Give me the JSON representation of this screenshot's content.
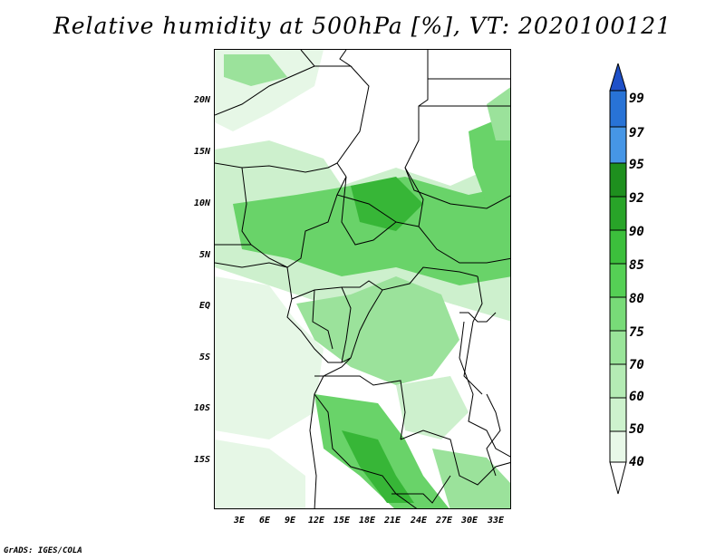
{
  "title": "Relative humidity at 500hPa [%], VT: 2020100121",
  "footer": "GrADS: IGES/COLA",
  "lat_labels": [
    "20N",
    "15N",
    "10N",
    "5N",
    "EQ",
    "5S",
    "10S",
    "15S"
  ],
  "lon_labels": [
    "3E",
    "6E",
    "9E",
    "12E",
    "15E",
    "18E",
    "21E",
    "24E",
    "27E",
    "30E",
    "33E"
  ],
  "colorbar": {
    "levels": [
      "40",
      "50",
      "60",
      "70",
      "75",
      "80",
      "85",
      "90",
      "92",
      "95",
      "97",
      "99"
    ],
    "colors": [
      "#ffffff",
      "#e6f7e6",
      "#cdf0cd",
      "#b4e9b4",
      "#9be29b",
      "#82db82",
      "#69d369",
      "#50c850",
      "#37b637",
      "#1ea01e",
      "#0f8a0f",
      "#4696e6",
      "#2873d6",
      "#1e50c8"
    ]
  },
  "map": {
    "fill_colors": {
      "light": "#e6f7e6",
      "pale": "#cdf0cd",
      "mid": "#9be29b",
      "green": "#69d369",
      "strong": "#37b637"
    },
    "border_color": "#000000"
  }
}
